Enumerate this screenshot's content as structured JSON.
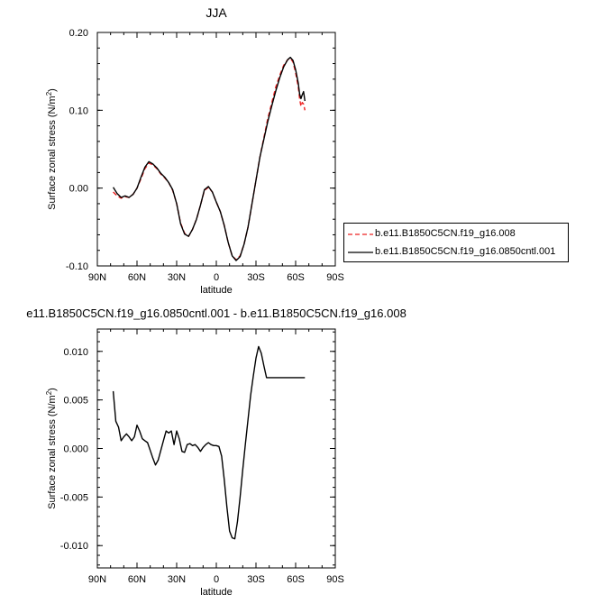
{
  "chart_data": [
    {
      "type": "line",
      "title": "JJA",
      "xlabel": "latitude",
      "ylabel": "Surface zonal stress (N/m",
      "ylabel_sup": "2",
      "ylabel_close": ")",
      "xlim": [
        90,
        -90
      ],
      "ylim": [
        -0.1,
        0.2
      ],
      "xticks": [
        90,
        60,
        30,
        0,
        -30,
        -60,
        -90
      ],
      "xtick_labels": [
        "90N",
        "60N",
        "30N",
        "0",
        "30S",
        "60S",
        "90S"
      ],
      "yticks": [
        -0.1,
        0.0,
        0.1,
        0.2
      ],
      "ytick_labels": [
        "-0.10",
        "0.00",
        "0.10",
        "0.20"
      ],
      "legend": "right",
      "series": [
        {
          "name": "b.e11.B1850C5CN.f19_g16.008",
          "color": "#ee2222",
          "dash": "dashed",
          "x": [
            78,
            75,
            72,
            69,
            66,
            63,
            60,
            57,
            54,
            51,
            48,
            45,
            42,
            39,
            36,
            33,
            30,
            27,
            24,
            21,
            18,
            15,
            12,
            9,
            6,
            3,
            0,
            -3,
            -6,
            -9,
            -12,
            -15,
            -18,
            -21,
            -24,
            -27,
            -30,
            -33,
            -36,
            -39,
            -42,
            -45,
            -48,
            -51,
            -54,
            -56,
            -58,
            -60,
            -62,
            -63,
            -64,
            -65,
            -66,
            -67
          ],
          "y": [
            -0.005,
            -0.01,
            -0.013,
            -0.011,
            -0.012,
            -0.008,
            0.0,
            0.012,
            0.025,
            0.032,
            0.03,
            0.025,
            0.018,
            0.013,
            0.007,
            -0.003,
            -0.02,
            -0.045,
            -0.058,
            -0.062,
            -0.053,
            -0.04,
            -0.022,
            -0.003,
            0.001,
            -0.005,
            -0.018,
            -0.03,
            -0.048,
            -0.07,
            -0.087,
            -0.092,
            -0.087,
            -0.072,
            -0.05,
            -0.02,
            0.01,
            0.04,
            0.065,
            0.09,
            0.11,
            0.13,
            0.145,
            0.158,
            0.165,
            0.167,
            0.162,
            0.148,
            0.13,
            0.115,
            0.105,
            0.11,
            0.108,
            0.1
          ]
        },
        {
          "name": "b.e11.B1850C5CN.f19_g16.0850cntl.001",
          "color": "#000000",
          "dash": "solid",
          "x": [
            78,
            75,
            72,
            69,
            66,
            63,
            60,
            57,
            54,
            51,
            48,
            45,
            42,
            39,
            36,
            33,
            30,
            27,
            24,
            21,
            18,
            15,
            12,
            9,
            6,
            3,
            0,
            -3,
            -6,
            -9,
            -12,
            -15,
            -18,
            -21,
            -24,
            -27,
            -30,
            -33,
            -36,
            -39,
            -42,
            -45,
            -48,
            -51,
            -54,
            -56,
            -58,
            -60,
            -62,
            -63,
            -64,
            -65,
            -66,
            -67
          ],
          "y": [
            0.001,
            -0.007,
            -0.012,
            -0.01,
            -0.012,
            -0.008,
            0.0,
            0.014,
            0.027,
            0.034,
            0.031,
            0.026,
            0.019,
            0.014,
            0.007,
            -0.002,
            -0.02,
            -0.046,
            -0.059,
            -0.062,
            -0.053,
            -0.04,
            -0.022,
            -0.002,
            0.002,
            -0.005,
            -0.018,
            -0.03,
            -0.048,
            -0.07,
            -0.087,
            -0.093,
            -0.088,
            -0.072,
            -0.05,
            -0.02,
            0.01,
            0.04,
            0.063,
            0.086,
            0.106,
            0.125,
            0.142,
            0.156,
            0.165,
            0.168,
            0.164,
            0.152,
            0.135,
            0.121,
            0.115,
            0.12,
            0.124,
            0.112
          ]
        }
      ]
    },
    {
      "type": "line",
      "title": "e11.B1850C5CN.f19_g16.0850cntl.001 - b.e11.B1850C5CN.f19_g16.008",
      "xlabel": "latitude",
      "ylabel": "Surface zonal stress (N/m",
      "ylabel_sup": "2",
      "ylabel_close": ")",
      "xlim": [
        90,
        -90
      ],
      "ylim": [
        -0.0123,
        0.0123
      ],
      "xticks": [
        90,
        60,
        30,
        0,
        -30,
        -60,
        -90
      ],
      "xtick_labels": [
        "90N",
        "60N",
        "30N",
        "0",
        "30S",
        "60S",
        "90S"
      ],
      "yticks": [
        -0.01,
        -0.005,
        0.0,
        0.005,
        0.01
      ],
      "ytick_labels": [
        "-0.010",
        "-0.005",
        "0.000",
        "0.005",
        "0.010"
      ],
      "series": [
        {
          "name": "",
          "color": "#000000",
          "dash": "solid",
          "x": [
            78,
            76,
            74,
            72,
            70,
            68,
            66,
            64,
            62,
            60,
            58,
            56,
            54,
            52,
            50,
            48,
            46,
            44,
            42,
            40,
            38,
            36,
            34,
            32,
            30,
            28,
            26,
            24,
            22,
            20,
            18,
            16,
            14,
            12,
            10,
            8,
            6,
            4,
            2,
            0,
            -2,
            -4,
            -6,
            -8,
            -10,
            -12,
            -14,
            -16,
            -18,
            -20,
            -22,
            -24,
            -26,
            -28,
            -30,
            -32,
            -34,
            -36,
            -38,
            -40,
            -42,
            -44,
            -46,
            -48,
            -50,
            -52,
            -54,
            -56,
            -58,
            -60,
            -62,
            -64,
            -66,
            -67
          ],
          "y": [
            0.0059,
            0.0028,
            0.0022,
            0.0008,
            0.0012,
            0.0015,
            0.0012,
            0.0008,
            0.0012,
            0.0024,
            0.0018,
            0.001,
            0.0008,
            0.0006,
            -0.0002,
            -0.001,
            -0.0017,
            -0.0012,
            -0.0002,
            0.0008,
            0.0018,
            0.0016,
            0.0018,
            0.0004,
            0.0018,
            0.001,
            -0.0003,
            -0.0004,
            0.0004,
            0.0005,
            0.0003,
            0.0004,
            0.0001,
            -0.0003,
            0.0001,
            0.0004,
            0.0006,
            0.0004,
            0.0003,
            0.0003,
            0.0002,
            -0.0008,
            -0.0032,
            -0.006,
            -0.0085,
            -0.0092,
            -0.0093,
            -0.0075,
            -0.005,
            -0.0022,
            0.0005,
            0.003,
            0.0055,
            0.0075,
            0.0093,
            0.0105,
            0.0098,
            0.0085,
            0.0073,
            0.0073,
            0.0073,
            0.0073,
            0.0073,
            0.0073,
            0.0073,
            0.0073,
            0.0073,
            0.0073,
            0.0073,
            0.0073,
            0.0073,
            0.0073,
            0.0073,
            0.0073
          ]
        }
      ]
    }
  ]
}
